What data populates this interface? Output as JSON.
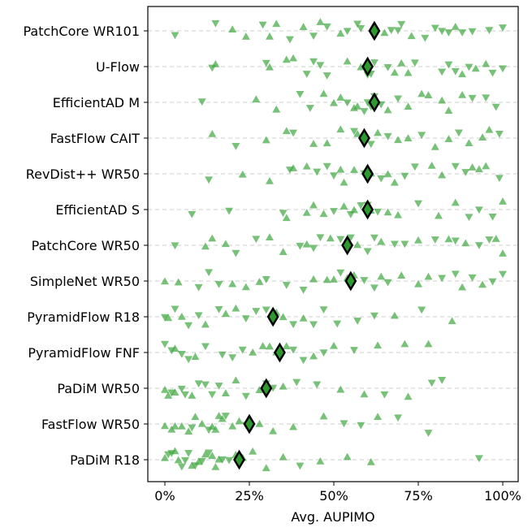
{
  "chart_data": {
    "type": "scatter",
    "title": "",
    "xlabel": "Avg. AUPIMO",
    "ylabel": "",
    "xlim": [
      -4,
      105
    ],
    "xticks": [
      {
        "value": 0,
        "label": "0%"
      },
      {
        "value": 25,
        "label": "25%"
      },
      {
        "value": 50,
        "label": "50%"
      },
      {
        "value": 75,
        "label": "75%"
      },
      {
        "value": 100,
        "label": "100%"
      }
    ],
    "grid": "horizontal dashed",
    "colors": {
      "points": "#3fa73f",
      "mean_marker_fill": "#2e9a2e",
      "mean_marker_edge": "#000000",
      "grid": "#cccccc"
    },
    "markers": {
      "points": "triangles (up/down, semi-transparent)",
      "mean": "diamond"
    },
    "categories": [
      "PatchCore WR101",
      "U-Flow",
      "EfficientAD M",
      "FastFlow CAIT",
      "RevDist++ WR50",
      "EfficientAD S",
      "PatchCore WR50",
      "SimpleNet WR50",
      "PyramidFlow R18",
      "PyramidFlow FNF",
      "PaDiM WR50",
      "FastFlow WR50",
      "PaDiM R18"
    ],
    "means": [
      62,
      60,
      62,
      59,
      60,
      60,
      54,
      55,
      32,
      34,
      30,
      25,
      22
    ],
    "series": [
      {
        "category": "PatchCore WR101",
        "x": [
          3,
          15,
          20,
          24,
          29,
          31,
          33,
          37,
          41,
          44,
          46,
          48,
          52,
          54,
          57,
          58,
          65,
          67,
          69,
          70,
          73,
          77,
          80,
          82,
          84,
          86,
          88,
          91,
          96,
          100
        ]
      },
      {
        "category": "U-Flow",
        "x": [
          14,
          15,
          30,
          31,
          36,
          38,
          42,
          44,
          46,
          48,
          54,
          58,
          60,
          61,
          62,
          66,
          68,
          70,
          72,
          74,
          82,
          84,
          86,
          88,
          90,
          92,
          95,
          97,
          100
        ]
      },
      {
        "category": "EfficientAD M",
        "x": 11,
        "x_list": [
          11,
          27,
          33,
          40,
          43,
          47,
          50,
          52,
          54,
          56,
          57,
          59,
          60,
          61,
          62,
          64,
          66,
          69,
          72,
          76,
          78,
          82,
          84,
          88,
          91,
          95,
          98
        ]
      },
      {
        "category": "FastFlow CAIT",
        "x": [
          14,
          21,
          30,
          36,
          38,
          44,
          48,
          52,
          56,
          57,
          61,
          63,
          66,
          69,
          72,
          76,
          80,
          84,
          87,
          90,
          94,
          96,
          99
        ]
      },
      {
        "category": "RevDist++ WR50",
        "x": [
          13,
          23,
          31,
          37,
          38,
          42,
          45,
          48,
          50,
          52,
          53,
          56,
          59,
          61,
          64,
          66,
          68,
          71,
          74,
          79,
          82,
          86,
          89,
          91,
          93,
          95,
          99
        ]
      },
      {
        "category": "EfficientAD S",
        "x": [
          8,
          19,
          35,
          36,
          42,
          44,
          47,
          50,
          53,
          55,
          56,
          58,
          60,
          61,
          63,
          66,
          69,
          75,
          81,
          86,
          90,
          93,
          97,
          100
        ]
      },
      {
        "category": "PatchCore WR50",
        "x": [
          3,
          12,
          14,
          18,
          21,
          27,
          31,
          35,
          40,
          42,
          44,
          46,
          49,
          52,
          55,
          57,
          60,
          62,
          64,
          68,
          71,
          75,
          80,
          84,
          86,
          89,
          93,
          96,
          98,
          100
        ]
      },
      {
        "category": "SimpleNet WR50",
        "x": [
          0,
          4,
          10,
          13,
          16,
          20,
          24,
          28,
          30,
          36,
          41,
          44,
          48,
          50,
          52,
          54,
          56,
          59,
          62,
          64,
          66,
          70,
          75,
          78,
          82,
          86,
          88,
          91,
          94,
          97,
          100
        ]
      },
      {
        "category": "PyramidFlow R18",
        "x": [
          0,
          1,
          3,
          5,
          7,
          10,
          12,
          16,
          18,
          21,
          24,
          27,
          30,
          33,
          35,
          38,
          41,
          44,
          47,
          51,
          57,
          62,
          68,
          76,
          85
        ]
      },
      {
        "category": "PyramidFlow FNF",
        "x": [
          0,
          2,
          3,
          5,
          7,
          9,
          12,
          17,
          20,
          23,
          26,
          29,
          31,
          33,
          36,
          38,
          41,
          44,
          47,
          50,
          56,
          63,
          71,
          78
        ]
      },
      {
        "category": "PaDiM WR50",
        "x": [
          0,
          1,
          2,
          3,
          5,
          6,
          8,
          10,
          12,
          14,
          16,
          18,
          21,
          24,
          28,
          30,
          32,
          35,
          39,
          45,
          52,
          59,
          65,
          72,
          79,
          82
        ]
      },
      {
        "category": "FastFlow WR50",
        "x": [
          0,
          2,
          3,
          5,
          7,
          8,
          9,
          11,
          13,
          14,
          15,
          16,
          17,
          18,
          20,
          22,
          24,
          28,
          32,
          38,
          47,
          53,
          58,
          63,
          69,
          78
        ]
      },
      {
        "category": "PaDiM R18",
        "x": [
          0,
          1,
          2,
          3,
          4,
          5,
          6,
          7,
          8,
          9,
          10,
          11,
          12,
          13,
          14,
          15,
          16,
          17,
          19,
          21,
          23,
          26,
          30,
          35,
          40,
          46,
          54,
          61,
          93
        ]
      }
    ]
  }
}
